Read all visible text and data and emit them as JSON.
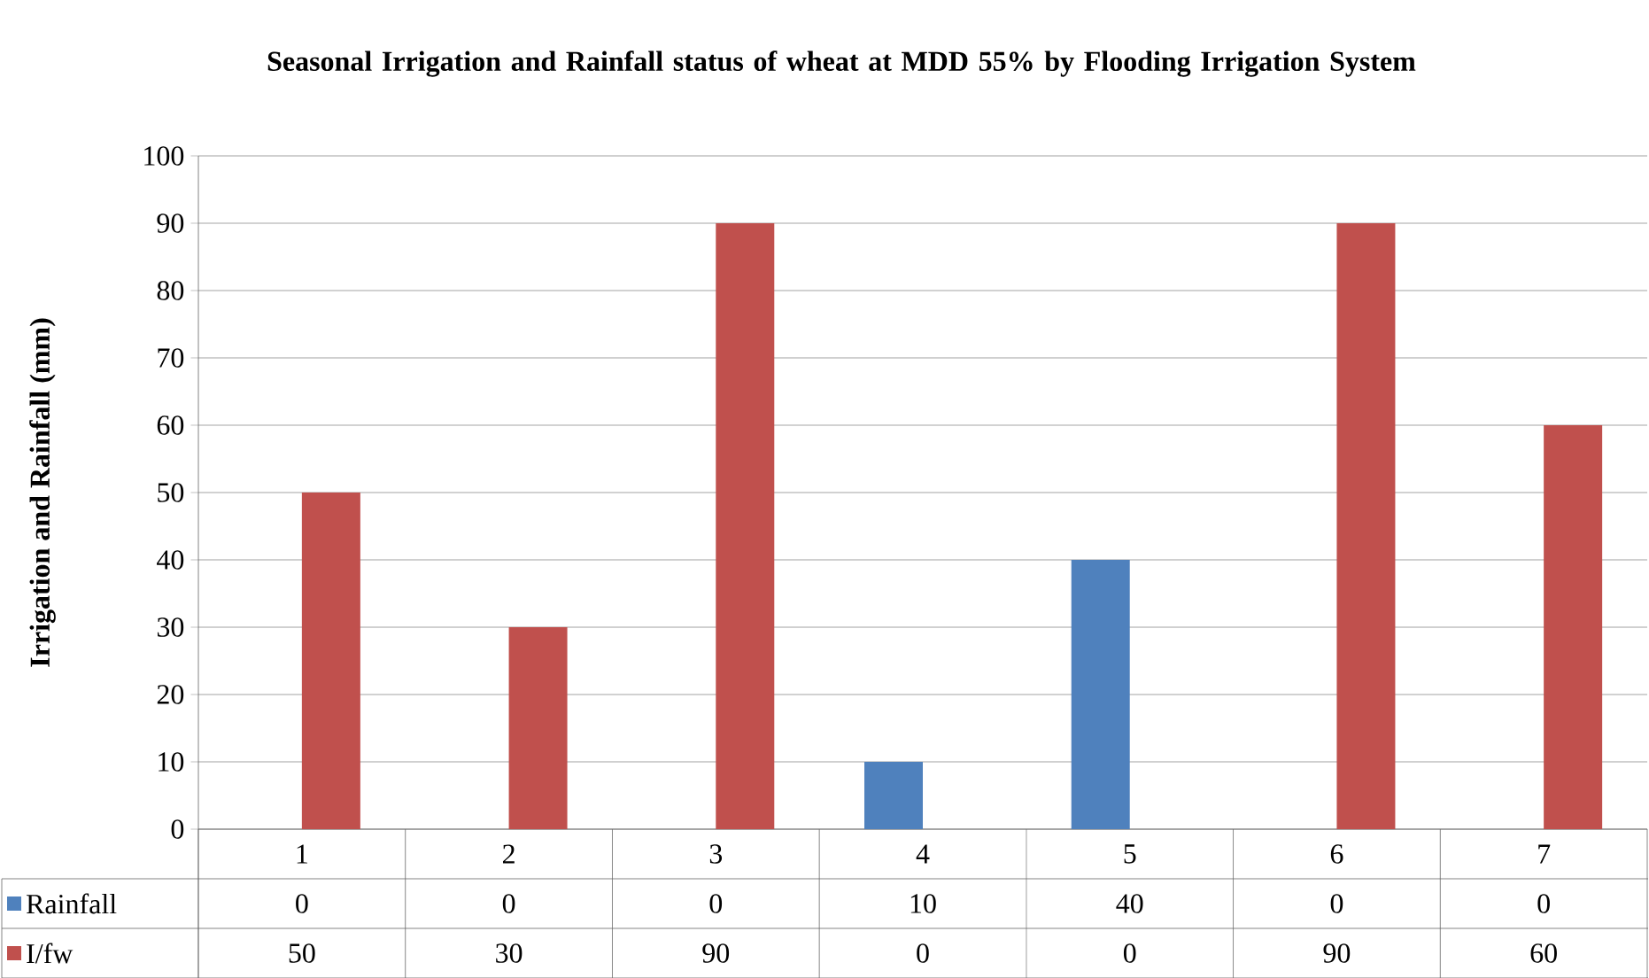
{
  "chart_data": {
    "type": "bar",
    "title": "Seasonal Irrigation and Rainfall status of wheat at MDD 55% by Flooding Irrigation System",
    "ylabel": "Irrigation and Rainfall (mm)",
    "categories": [
      "1",
      "2",
      "3",
      "4",
      "5",
      "6",
      "7"
    ],
    "series": [
      {
        "name": "Rainfall",
        "color": "#4f81bd",
        "values": [
          0,
          0,
          0,
          10,
          40,
          0,
          0
        ]
      },
      {
        "name": "I/fw",
        "color": "#c0504d",
        "values": [
          50,
          30,
          90,
          0,
          0,
          90,
          60
        ]
      }
    ],
    "ylim": [
      0,
      100
    ],
    "yticks": [
      0,
      10,
      20,
      30,
      40,
      50,
      60,
      70,
      80,
      90,
      100
    ],
    "grid": "y",
    "legend": "bottom",
    "data_labels": true
  }
}
